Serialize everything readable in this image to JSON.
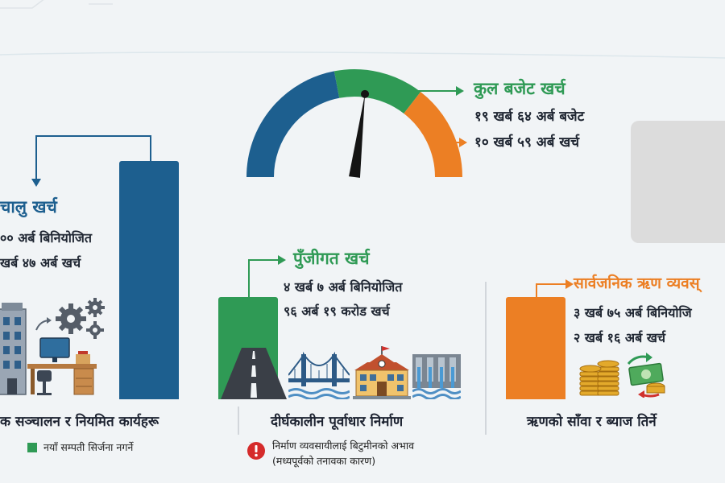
{
  "colors": {
    "blue": "#1d5f8f",
    "green": "#2f9a55",
    "orange": "#ec7f24",
    "red": "#d52b2b"
  },
  "chart_data": [
    {
      "type": "gauge",
      "segments": [
        {
          "color": "#1d5f8f",
          "fraction": 0.44
        },
        {
          "color": "#2f9a55",
          "fraction": 0.27
        },
        {
          "color": "#ec7f24",
          "fraction": 0.29
        }
      ],
      "needle_fraction": 0.54,
      "title": "कुल बजेट खर्च",
      "lines": [
        "१९ खर्ब ६४ अर्ब बजेट",
        "१० खर्ब ५९ अर्ब खर्च"
      ]
    },
    {
      "type": "bar",
      "categories": [
        "चालु खर्च",
        "पुँजीगत खर्च",
        "सार्वजनिक ऋण व्यवस्थापन"
      ],
      "series": [
        {
          "values": [
            100,
            43,
            43
          ]
        }
      ]
    }
  ],
  "sections": [
    {
      "title": "चालु खर्च",
      "lines": [
        "०० अर्ब बिनियोजित",
        "खर्ब ४७ अर्ब खर्च"
      ],
      "category": "क सञ्चालन र नियमित कार्यहरू",
      "note": "नयाँ सम्पती सिर्जना नगर्ने"
    },
    {
      "title": "पुँजीगत खर्च",
      "lines": [
        "४ खर्ब ७ अर्ब बिनियोजित",
        "९६ अर्ब १९ करोड खर्च"
      ],
      "category": "दीर्घकालीन पूर्वाधार निर्माण",
      "note_lines": [
        "निर्माण व्यवसायीलाई बिटुमीनको अभाव",
        "(मध्यपूर्वको तनावका कारण)"
      ]
    },
    {
      "title": "सार्वजनिक ऋण व्यवस्",
      "lines": [
        "३ खर्ब ७५ अर्ब बिनियोजि",
        "२ खर्ब १६ अर्ब खर्च"
      ],
      "category": "ऋणको साँवा र ब्याज तिर्ने"
    }
  ],
  "icons": {
    "office": "office-building-icon",
    "gears": "gears-icon",
    "desk": "desk-computer-icon",
    "road": "road-icon",
    "bridge": "bridge-icon",
    "school": "school-building-icon",
    "dam": "dam-icon",
    "coins": "coin-stacks-icon",
    "money": "money-exchange-icon",
    "warning": "warning-icon"
  }
}
